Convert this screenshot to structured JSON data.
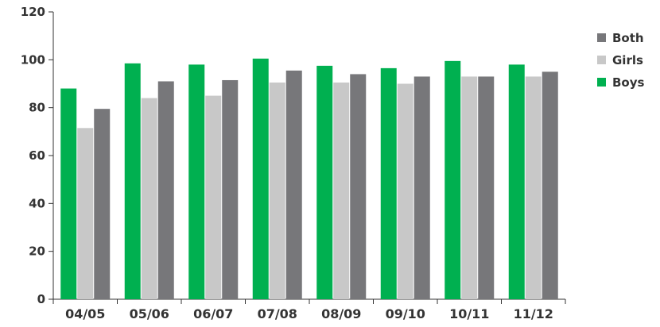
{
  "chart_data": {
    "type": "bar",
    "categories": [
      "04/05",
      "05/06",
      "06/07",
      "07/08",
      "08/09",
      "09/10",
      "10/11",
      "11/12"
    ],
    "series": [
      {
        "name": "Boys",
        "color": "#00b050",
        "values": [
          88,
          98.5,
          98,
          100.5,
          97.5,
          96.5,
          99.5,
          98
        ]
      },
      {
        "name": "Girls",
        "color": "#c8c8c8",
        "values": [
          71.5,
          84,
          85,
          90.5,
          90.5,
          90,
          93,
          93
        ]
      },
      {
        "name": "Both",
        "color": "#77777a",
        "values": [
          79.5,
          91,
          91.5,
          95.5,
          94,
          93,
          93,
          95
        ]
      }
    ],
    "ylim": [
      0,
      120
    ],
    "yticks": [
      0,
      20,
      40,
      60,
      80,
      100,
      120
    ],
    "legend": {
      "position": "right",
      "order": [
        "Both",
        "Girls",
        "Boys"
      ]
    },
    "grid": false
  }
}
